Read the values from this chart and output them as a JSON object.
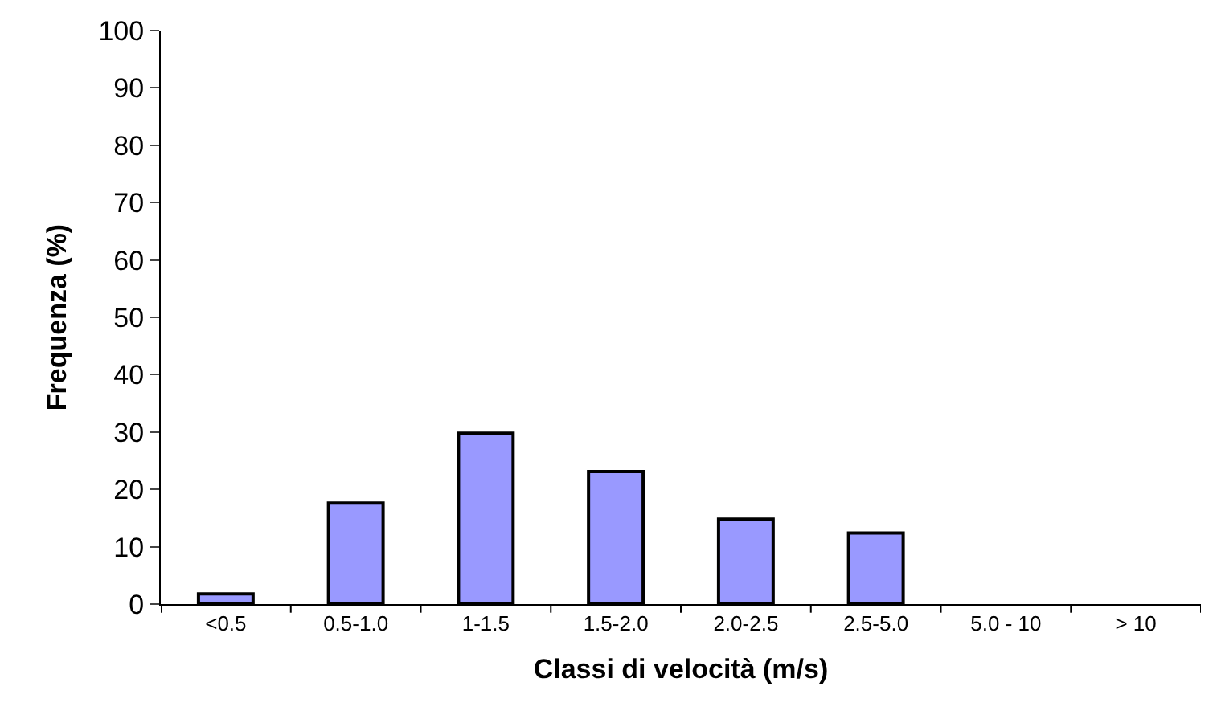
{
  "chart_data": {
    "type": "bar",
    "xlabel": "Classi di velocità (m/s)",
    "ylabel": "Frequenza (%)",
    "categories": [
      "<0.5",
      "0.5-1.0",
      "1-1.5",
      "1.5-2.0",
      "2.0-2.5",
      "2.5-5.0",
      "5.0 - 10",
      "> 10"
    ],
    "values": [
      1.8,
      17.6,
      29.8,
      23.1,
      14.8,
      12.4,
      0,
      0
    ],
    "color": "#9999ff",
    "ylim": [
      0,
      100
    ],
    "yticks": [
      0,
      10,
      20,
      30,
      40,
      50,
      60,
      70,
      80,
      90,
      100
    ]
  }
}
